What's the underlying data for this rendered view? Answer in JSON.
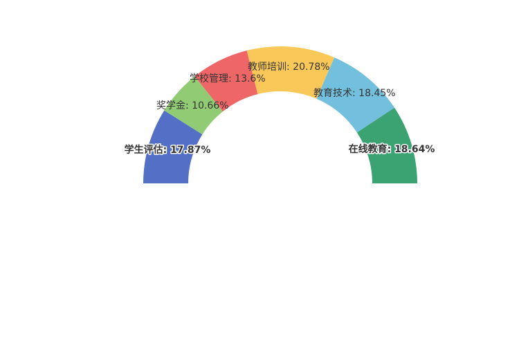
{
  "chart_data": {
    "type": "pie",
    "variant": "half-donut",
    "slices": [
      {
        "name": "学生评估",
        "value": 17.87,
        "label": "学生评估: 17.87%",
        "color": "#5470c6"
      },
      {
        "name": "奖学金",
        "value": 10.66,
        "label": "奖学金: 10.66%",
        "color": "#91cc75"
      },
      {
        "name": "学校管理",
        "value": 13.6,
        "label": "学校管理: 13.6%",
        "color": "#ee6666"
      },
      {
        "name": "教师培训",
        "value": 20.78,
        "label": "教师培训: 20.78%",
        "color": "#fac858"
      },
      {
        "name": "教育技术",
        "value": 18.45,
        "label": "教育技术: 18.45%",
        "color": "#73c0de"
      },
      {
        "name": "在线教育",
        "value": 18.64,
        "label": "在线教育: 18.64%",
        "color": "#3ba272"
      }
    ]
  }
}
